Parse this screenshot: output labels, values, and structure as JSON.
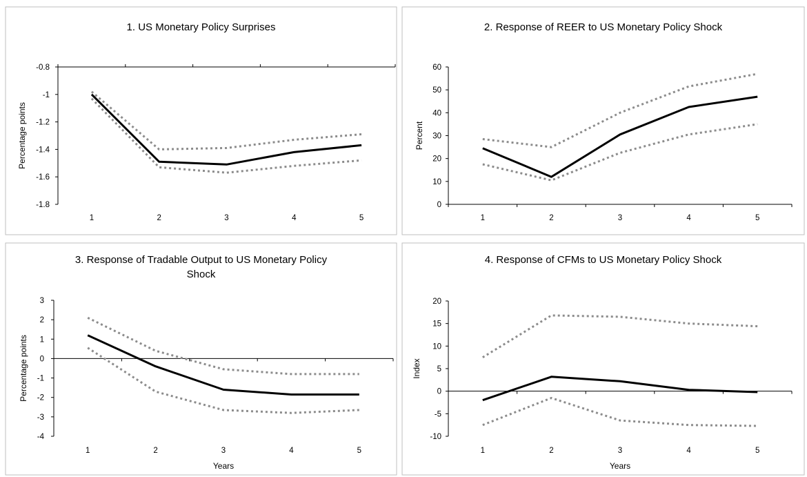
{
  "chart_data": [
    {
      "type": "line",
      "title": "1. US Monetary Policy Surprises",
      "title_lines": [
        "1. US Monetary Policy Surprises"
      ],
      "xlabel": "",
      "ylabel": "Percentage points",
      "x": [
        1,
        2,
        3,
        4,
        5
      ],
      "ylim": [
        -1.8,
        -0.8
      ],
      "yticks": [
        -0.8,
        -1,
        -1.2,
        -1.4,
        -1.6,
        -1.8
      ],
      "ytick_labels": [
        "-0.8",
        "-1",
        "-1.2",
        "-1.4",
        "-1.6",
        "-1.8"
      ],
      "xaxis_at": "top",
      "series": [
        {
          "role": "estimate",
          "values": [
            -1.0,
            -1.49,
            -1.51,
            -1.42,
            -1.37
          ]
        },
        {
          "role": "upper-band",
          "values": [
            -0.98,
            -1.4,
            -1.39,
            -1.33,
            -1.29
          ]
        },
        {
          "role": "lower-band",
          "values": [
            -1.03,
            -1.53,
            -1.57,
            -1.52,
            -1.48
          ]
        }
      ]
    },
    {
      "type": "line",
      "title": "2. Response of REER to US Monetary Policy Shock",
      "title_lines": [
        "2. Response of REER to US Monetary Policy Shock"
      ],
      "xlabel": "",
      "ylabel": "Percent",
      "x": [
        1,
        2,
        3,
        4,
        5
      ],
      "ylim": [
        0,
        60
      ],
      "yticks": [
        0,
        10,
        20,
        30,
        40,
        50,
        60
      ],
      "ytick_labels": [
        "0",
        "10",
        "20",
        "30",
        "40",
        "50",
        "60"
      ],
      "xaxis_at": "zero",
      "series": [
        {
          "role": "estimate",
          "values": [
            24.5,
            12,
            30.5,
            42.5,
            47
          ]
        },
        {
          "role": "upper-band",
          "values": [
            28.5,
            25,
            40,
            51.5,
            57
          ]
        },
        {
          "role": "lower-band",
          "values": [
            17.5,
            10.5,
            22.5,
            30.5,
            35
          ]
        }
      ]
    },
    {
      "type": "line",
      "title": "3. Response of Tradable Output to US Monetary Policy Shock",
      "title_lines": [
        "3. Response of Tradable Output to US Monetary Policy",
        "Shock"
      ],
      "xlabel": "Years",
      "ylabel": "Percentage points",
      "x": [
        1,
        2,
        3,
        4,
        5
      ],
      "ylim": [
        -4,
        3
      ],
      "yticks": [
        3,
        2,
        1,
        0,
        -1,
        -2,
        -3,
        -4
      ],
      "ytick_labels": [
        "3",
        "2",
        "1",
        "0",
        "-1",
        "-2",
        "-3",
        "-4"
      ],
      "xaxis_at": "zero",
      "series": [
        {
          "role": "estimate",
          "values": [
            1.2,
            -0.4,
            -1.6,
            -1.85,
            -1.85
          ]
        },
        {
          "role": "upper-band",
          "values": [
            2.1,
            0.4,
            -0.55,
            -0.8,
            -0.8
          ]
        },
        {
          "role": "lower-band",
          "values": [
            0.55,
            -1.7,
            -2.65,
            -2.8,
            -2.65
          ]
        }
      ]
    },
    {
      "type": "line",
      "title": "4. Response of CFMs to US Monetary Policy Shock",
      "title_lines": [
        "4. Response of CFMs to US Monetary Policy Shock"
      ],
      "xlabel": "Years",
      "ylabel": "Index",
      "x": [
        1,
        2,
        3,
        4,
        5
      ],
      "ylim": [
        -10,
        20
      ],
      "yticks": [
        20,
        15,
        10,
        5,
        0,
        -5,
        -10
      ],
      "ytick_labels": [
        "20",
        "15",
        "10",
        "5",
        "0",
        "-5",
        "-10"
      ],
      "xaxis_at": "zero",
      "series": [
        {
          "role": "estimate",
          "values": [
            -2,
            3.2,
            2.2,
            0.3,
            -0.2
          ]
        },
        {
          "role": "upper-band",
          "values": [
            7.5,
            16.8,
            16.5,
            15,
            14.4
          ]
        },
        {
          "role": "lower-band",
          "values": [
            -7.5,
            -1.5,
            -6.5,
            -7.5,
            -7.7
          ]
        }
      ]
    }
  ]
}
